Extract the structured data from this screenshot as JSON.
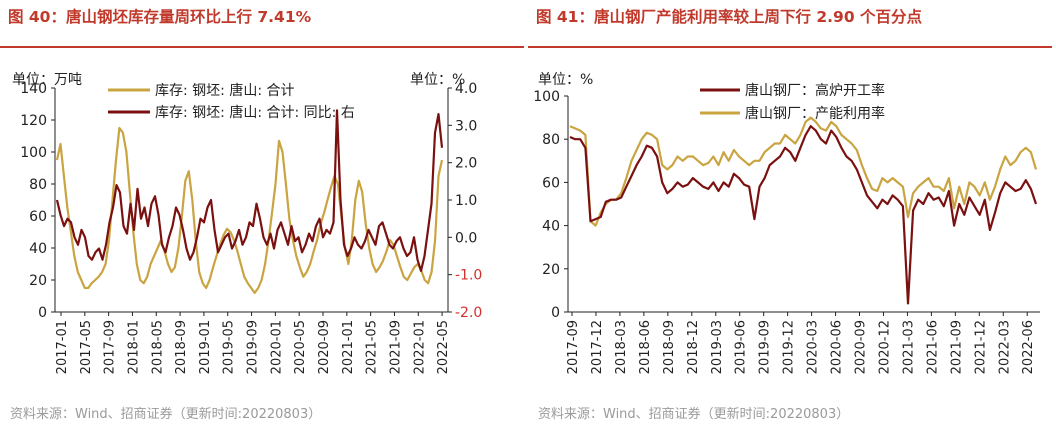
{
  "chart_data": [
    {
      "type": "line",
      "title": "图 40：唐山钢坯库存量周环比上行 7.41%",
      "left_unit": "单位：万吨",
      "right_unit": "单位：%",
      "y_left_range": [
        0,
        140
      ],
      "y_right_range": [
        -2.0,
        4.0
      ],
      "y_left_ticks": [
        "0",
        "20",
        "40",
        "60",
        "80",
        "100",
        "120",
        "140"
      ],
      "y_right_ticks": [
        "-2.0",
        "-1.0",
        "0.0",
        "1.0",
        "2.0",
        "3.0",
        "4.0"
      ],
      "x_ticks": [
        "2017-01",
        "2017-05",
        "2017-09",
        "2018-01",
        "2018-05",
        "2018-09",
        "2019-01",
        "2019-05",
        "2019-09",
        "2020-01",
        "2020-05",
        "2020-09",
        "2021-01",
        "2021-05",
        "2021-09",
        "2022-01",
        "2022-05"
      ],
      "series": [
        {
          "name": "库存: 钢坯: 唐山: 合计",
          "axis": "left",
          "color": "#c9a441",
          "values": [
            95,
            105,
            85,
            65,
            50,
            35,
            25,
            20,
            15,
            15,
            18,
            20,
            22,
            25,
            30,
            45,
            70,
            95,
            115,
            112,
            100,
            75,
            50,
            30,
            20,
            18,
            22,
            30,
            35,
            40,
            45,
            38,
            30,
            25,
            28,
            40,
            60,
            82,
            88,
            70,
            45,
            25,
            18,
            15,
            20,
            28,
            35,
            42,
            48,
            52,
            50,
            45,
            38,
            30,
            22,
            18,
            15,
            12,
            15,
            20,
            30,
            45,
            62,
            80,
            107,
            100,
            80,
            58,
            45,
            35,
            28,
            22,
            25,
            30,
            38,
            45,
            55,
            62,
            70,
            78,
            85,
            80,
            60,
            40,
            30,
            45,
            70,
            82,
            75,
            55,
            40,
            30,
            25,
            28,
            32,
            38,
            45,
            42,
            35,
            28,
            22,
            20,
            24,
            28,
            30,
            26,
            20,
            18,
            25,
            45,
            85,
            95
          ]
        },
        {
          "name": "库存: 钢坯: 唐山: 合计: 同比: 右",
          "axis": "right",
          "color": "#7b1010",
          "values": [
            1.0,
            0.6,
            0.3,
            0.5,
            0.4,
            0.0,
            -0.2,
            0.2,
            0.0,
            -0.5,
            -0.6,
            -0.4,
            -0.3,
            -0.6,
            -0.2,
            0.4,
            0.8,
            1.4,
            1.2,
            0.3,
            0.1,
            0.9,
            0.2,
            1.3,
            0.5,
            0.8,
            0.3,
            0.9,
            1.1,
            0.6,
            -0.2,
            -0.4,
            0.0,
            0.3,
            0.8,
            0.6,
            0.2,
            -0.3,
            -0.6,
            -0.4,
            0.0,
            0.5,
            0.4,
            0.8,
            1.0,
            0.2,
            -0.4,
            -0.2,
            0.0,
            0.1,
            -0.3,
            -0.1,
            0.2,
            -0.2,
            0.0,
            0.4,
            0.3,
            0.9,
            0.5,
            0.0,
            -0.2,
            0.1,
            -0.3,
            0.2,
            0.4,
            0.1,
            -0.2,
            0.3,
            -0.1,
            0.0,
            -0.4,
            -0.2,
            0.1,
            -0.1,
            0.3,
            0.5,
            0.0,
            0.2,
            0.1,
            0.4,
            3.4,
            1.0,
            -0.2,
            -0.5,
            -0.3,
            0.0,
            -0.2,
            -0.3,
            -0.1,
            0.2,
            0.0,
            -0.2,
            0.3,
            0.4,
            0.1,
            -0.2,
            -0.3,
            -0.1,
            0.0,
            -0.3,
            -0.5,
            -0.4,
            0.0,
            -0.6,
            -0.9,
            -0.5,
            0.2,
            0.9,
            2.8,
            3.3,
            2.4
          ]
        }
      ],
      "source": "资料来源：Wind、招商证券（更新时间:20220803）"
    },
    {
      "type": "line",
      "title": "图 41：唐山钢厂产能利用率较上周下行 2.90 个百分点",
      "left_unit": "单位：%",
      "y_left_range": [
        0,
        100
      ],
      "y_left_ticks": [
        "0",
        "20",
        "40",
        "60",
        "80",
        "100"
      ],
      "x_ticks": [
        "2017-09",
        "2017-12",
        "2018-03",
        "2018-06",
        "2018-09",
        "2018-12",
        "2019-03",
        "2019-06",
        "2019-09",
        "2019-12",
        "2020-03",
        "2020-06",
        "2020-09",
        "2020-12",
        "2021-03",
        "2021-06",
        "2021-09",
        "2021-12",
        "2022-03",
        "2022-06"
      ],
      "series": [
        {
          "name": "唐山钢厂：高炉开工率",
          "color": "#7b1010",
          "values": [
            81,
            80,
            80,
            76,
            42,
            43,
            44,
            51,
            52,
            52,
            53,
            58,
            63,
            68,
            72,
            77,
            76,
            72,
            60,
            55,
            57,
            60,
            58,
            59,
            62,
            60,
            58,
            57,
            60,
            56,
            60,
            58,
            64,
            62,
            59,
            58,
            43,
            58,
            62,
            68,
            70,
            72,
            76,
            74,
            70,
            76,
            82,
            86,
            84,
            80,
            78,
            84,
            81,
            76,
            72,
            70,
            66,
            60,
            54,
            51,
            48,
            52,
            50,
            54,
            52,
            49,
            4,
            47,
            52,
            50,
            55,
            52,
            53,
            49,
            56,
            40,
            50,
            45,
            53,
            49,
            45,
            52,
            38,
            46,
            55,
            60,
            58,
            56,
            57,
            61,
            57,
            50
          ]
        },
        {
          "name": "唐山钢厂：产能利用率",
          "color": "#c9a441",
          "values": [
            86,
            85,
            84,
            82,
            42,
            40,
            46,
            50,
            52,
            52,
            55,
            62,
            70,
            75,
            80,
            83,
            82,
            80,
            68,
            66,
            68,
            72,
            70,
            72,
            72,
            70,
            68,
            69,
            72,
            68,
            74,
            70,
            75,
            72,
            70,
            68,
            70,
            70,
            74,
            76,
            78,
            78,
            82,
            80,
            78,
            82,
            88,
            90,
            88,
            85,
            84,
            88,
            86,
            82,
            80,
            78,
            75,
            68,
            62,
            57,
            56,
            62,
            60,
            62,
            60,
            58,
            44,
            55,
            58,
            60,
            62,
            58,
            58,
            56,
            62,
            48,
            58,
            50,
            60,
            58,
            54,
            60,
            52,
            58,
            66,
            72,
            68,
            70,
            74,
            76,
            74,
            66
          ]
        }
      ],
      "source": "资料来源：Wind、招商证券（更新时间:20220803）"
    }
  ]
}
